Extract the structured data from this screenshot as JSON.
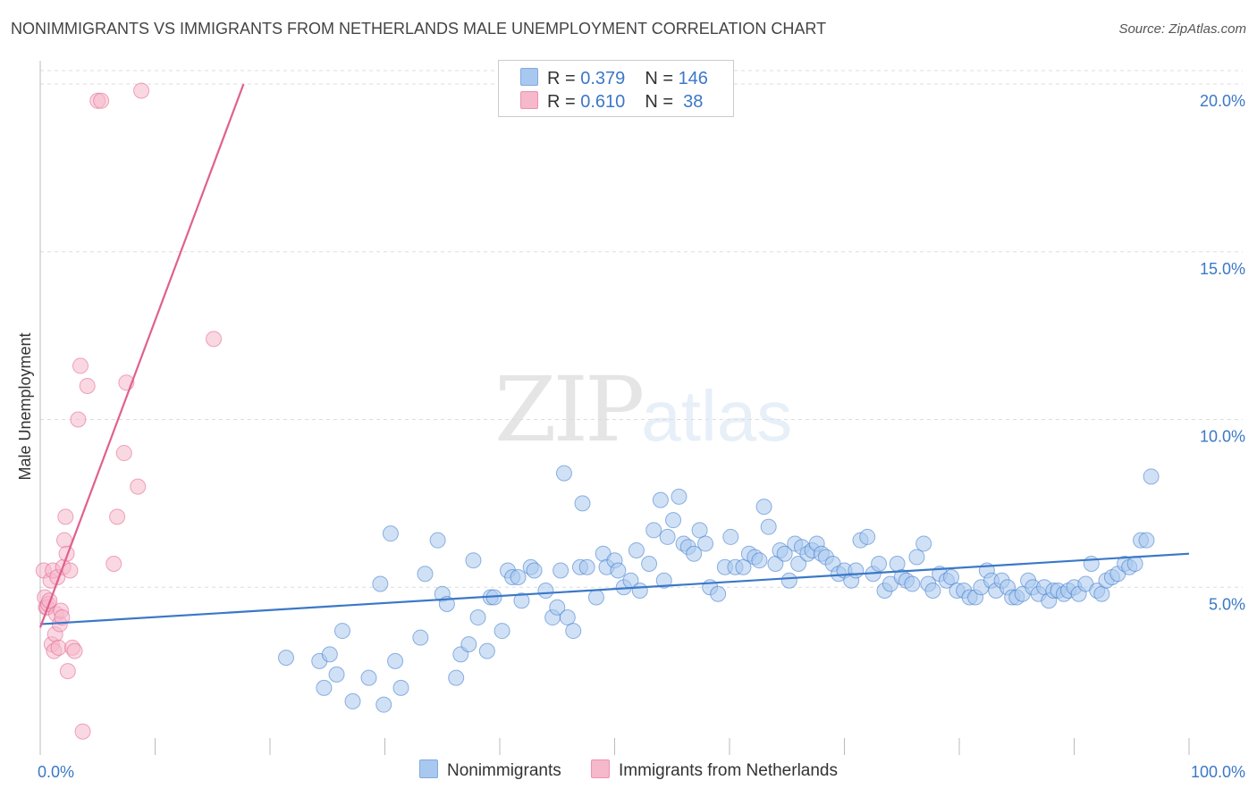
{
  "title": "NONIMMIGRANTS VS IMMIGRANTS FROM NETHERLANDS MALE UNEMPLOYMENT CORRELATION CHART",
  "source": "Source: ZipAtlas.com",
  "watermark": {
    "zip": "ZIP",
    "atlas": "atlas"
  },
  "legend_top": {
    "rows": [
      {
        "r_label": "R = ",
        "r_value": "0.379",
        "n_label": "N = ",
        "n_value": "146",
        "color": "#a9c8ef"
      },
      {
        "r_label": "R = ",
        "r_value": "0.610",
        "n_label": "N = ",
        "n_value": " 38",
        "color": "#f6b8cb"
      }
    ]
  },
  "legend_bottom": [
    {
      "label": "Nonimmigrants",
      "color": "#a9c8ef"
    },
    {
      "label": "Immigrants from Netherlands",
      "color": "#f6b8cb"
    }
  ],
  "chart_data": {
    "type": "scatter",
    "title": "NONIMMIGRANTS VS IMMIGRANTS FROM NETHERLANDS MALE UNEMPLOYMENT CORRELATION CHART",
    "xlabel": "",
    "ylabel": "Male Unemployment",
    "xlim": [
      0,
      100
    ],
    "ylim": [
      0,
      20
    ],
    "x_tick_labels": [
      {
        "value": 0,
        "label": "0.0%"
      },
      {
        "value": 100,
        "label": "100.0%"
      }
    ],
    "y_tick_labels": [
      {
        "value": 5,
        "label": "5.0%"
      },
      {
        "value": 10,
        "label": "10.0%"
      },
      {
        "value": 15,
        "label": "15.0%"
      },
      {
        "value": 20,
        "label": "20.0%"
      }
    ],
    "grid": "horizontal-dashed",
    "legend_placement": "bottom",
    "series": [
      {
        "name": "Nonimmigrants",
        "color": "#3b78c8",
        "fill": "#a9c8ef",
        "trendline": {
          "x": [
            0,
            100
          ],
          "y": [
            3.9,
            6.0
          ]
        },
        "points": [
          [
            21.4,
            2.9
          ],
          [
            24.3,
            2.8
          ],
          [
            24.7,
            2.0
          ],
          [
            25.2,
            3.0
          ],
          [
            25.8,
            2.4
          ],
          [
            26.3,
            3.7
          ],
          [
            27.2,
            1.6
          ],
          [
            28.6,
            2.3
          ],
          [
            29.6,
            5.1
          ],
          [
            29.9,
            1.5
          ],
          [
            30.5,
            6.6
          ],
          [
            30.9,
            2.8
          ],
          [
            31.4,
            2.0
          ],
          [
            33.1,
            3.5
          ],
          [
            33.5,
            5.4
          ],
          [
            34.6,
            6.4
          ],
          [
            35.0,
            4.8
          ],
          [
            35.4,
            4.5
          ],
          [
            36.2,
            2.3
          ],
          [
            36.6,
            3.0
          ],
          [
            37.3,
            3.3
          ],
          [
            37.7,
            5.8
          ],
          [
            38.1,
            4.1
          ],
          [
            38.9,
            3.1
          ],
          [
            39.2,
            4.7
          ],
          [
            39.5,
            4.7
          ],
          [
            40.2,
            3.7
          ],
          [
            40.7,
            5.5
          ],
          [
            41.1,
            5.3
          ],
          [
            41.6,
            5.3
          ],
          [
            41.9,
            4.6
          ],
          [
            42.7,
            5.6
          ],
          [
            43.0,
            5.5
          ],
          [
            44.0,
            4.9
          ],
          [
            44.6,
            4.1
          ],
          [
            45.0,
            4.4
          ],
          [
            45.3,
            5.5
          ],
          [
            45.9,
            4.1
          ],
          [
            46.4,
            3.7
          ],
          [
            47.0,
            5.6
          ],
          [
            47.2,
            7.5
          ],
          [
            47.6,
            5.6
          ],
          [
            48.4,
            4.7
          ],
          [
            49.0,
            6.0
          ],
          [
            49.3,
            5.6
          ],
          [
            50.0,
            5.8
          ],
          [
            50.3,
            5.5
          ],
          [
            50.8,
            5.0
          ],
          [
            51.4,
            5.2
          ],
          [
            51.9,
            6.1
          ],
          [
            52.2,
            4.9
          ],
          [
            53.0,
            5.7
          ],
          [
            53.4,
            6.7
          ],
          [
            54.0,
            7.6
          ],
          [
            54.3,
            5.2
          ],
          [
            54.6,
            6.5
          ],
          [
            55.1,
            7.0
          ],
          [
            55.6,
            7.7
          ],
          [
            56.0,
            6.3
          ],
          [
            56.4,
            6.2
          ],
          [
            56.9,
            6.0
          ],
          [
            57.4,
            6.7
          ],
          [
            57.9,
            6.3
          ],
          [
            58.3,
            5.0
          ],
          [
            59.0,
            4.8
          ],
          [
            59.6,
            5.6
          ],
          [
            60.1,
            6.5
          ],
          [
            60.5,
            5.6
          ],
          [
            61.2,
            5.6
          ],
          [
            61.7,
            6.0
          ],
          [
            62.2,
            5.9
          ],
          [
            62.6,
            5.8
          ],
          [
            63.0,
            7.4
          ],
          [
            63.4,
            6.8
          ],
          [
            64.0,
            5.7
          ],
          [
            64.4,
            6.1
          ],
          [
            64.8,
            6.0
          ],
          [
            65.2,
            5.2
          ],
          [
            65.7,
            6.3
          ],
          [
            66.0,
            5.7
          ],
          [
            66.3,
            6.2
          ],
          [
            66.8,
            6.0
          ],
          [
            67.2,
            6.1
          ],
          [
            67.6,
            6.3
          ],
          [
            68.0,
            6.0
          ],
          [
            68.4,
            5.9
          ],
          [
            69.0,
            5.7
          ],
          [
            69.5,
            5.4
          ],
          [
            70.0,
            5.5
          ],
          [
            70.6,
            5.2
          ],
          [
            71.0,
            5.5
          ],
          [
            71.4,
            6.4
          ],
          [
            72.0,
            6.5
          ],
          [
            72.5,
            5.4
          ],
          [
            73.0,
            5.7
          ],
          [
            73.5,
            4.9
          ],
          [
            74.0,
            5.1
          ],
          [
            74.6,
            5.7
          ],
          [
            75.0,
            5.3
          ],
          [
            75.4,
            5.2
          ],
          [
            75.9,
            5.1
          ],
          [
            76.3,
            5.9
          ],
          [
            76.9,
            6.3
          ],
          [
            77.3,
            5.1
          ],
          [
            77.7,
            4.9
          ],
          [
            78.3,
            5.4
          ],
          [
            78.9,
            5.2
          ],
          [
            79.3,
            5.3
          ],
          [
            79.8,
            4.9
          ],
          [
            80.4,
            4.9
          ],
          [
            80.9,
            4.7
          ],
          [
            81.4,
            4.7
          ],
          [
            81.9,
            5.0
          ],
          [
            82.4,
            5.5
          ],
          [
            82.8,
            5.2
          ],
          [
            83.2,
            4.9
          ],
          [
            83.7,
            5.2
          ],
          [
            84.2,
            5.0
          ],
          [
            84.6,
            4.7
          ],
          [
            85.0,
            4.7
          ],
          [
            85.5,
            4.8
          ],
          [
            86.0,
            5.2
          ],
          [
            86.4,
            5.0
          ],
          [
            86.9,
            4.8
          ],
          [
            87.4,
            5.0
          ],
          [
            87.8,
            4.6
          ],
          [
            88.2,
            4.9
          ],
          [
            88.6,
            4.9
          ],
          [
            89.1,
            4.8
          ],
          [
            89.5,
            4.9
          ],
          [
            90.0,
            5.0
          ],
          [
            90.4,
            4.8
          ],
          [
            91.0,
            5.1
          ],
          [
            91.5,
            5.7
          ],
          [
            92.0,
            4.9
          ],
          [
            92.4,
            4.8
          ],
          [
            92.8,
            5.2
          ],
          [
            93.3,
            5.3
          ],
          [
            93.8,
            5.4
          ],
          [
            94.4,
            5.7
          ],
          [
            94.8,
            5.6
          ],
          [
            95.3,
            5.7
          ],
          [
            95.8,
            6.4
          ],
          [
            96.3,
            6.4
          ],
          [
            96.7,
            8.3
          ],
          [
            45.6,
            8.4
          ]
        ]
      },
      {
        "name": "Immigrants from Netherlands",
        "color": "#e0608f",
        "fill": "#f6b8cb",
        "trendline": {
          "x": [
            0,
            17.7
          ],
          "y": [
            3.8,
            20.0
          ]
        },
        "points": [
          [
            0.3,
            5.5
          ],
          [
            0.4,
            4.7
          ],
          [
            0.5,
            4.4
          ],
          [
            0.6,
            4.4
          ],
          [
            0.7,
            4.5
          ],
          [
            0.8,
            4.6
          ],
          [
            0.9,
            5.2
          ],
          [
            1.0,
            3.3
          ],
          [
            1.1,
            5.5
          ],
          [
            1.2,
            3.1
          ],
          [
            1.3,
            3.6
          ],
          [
            1.4,
            4.2
          ],
          [
            1.5,
            5.3
          ],
          [
            1.6,
            3.2
          ],
          [
            1.7,
            3.9
          ],
          [
            1.8,
            4.3
          ],
          [
            1.9,
            4.1
          ],
          [
            2.0,
            5.6
          ],
          [
            2.1,
            6.4
          ],
          [
            2.2,
            7.1
          ],
          [
            2.3,
            6.0
          ],
          [
            2.4,
            2.5
          ],
          [
            2.6,
            5.5
          ],
          [
            2.8,
            3.2
          ],
          [
            3.0,
            3.1
          ],
          [
            3.3,
            10.0
          ],
          [
            3.5,
            11.6
          ],
          [
            3.7,
            0.7
          ],
          [
            4.1,
            11.0
          ],
          [
            5.0,
            19.5
          ],
          [
            5.3,
            19.5
          ],
          [
            6.4,
            5.7
          ],
          [
            6.7,
            7.1
          ],
          [
            7.3,
            9.0
          ],
          [
            7.5,
            11.1
          ],
          [
            8.5,
            8.0
          ],
          [
            8.8,
            19.8
          ],
          [
            15.1,
            12.4
          ]
        ]
      }
    ]
  }
}
